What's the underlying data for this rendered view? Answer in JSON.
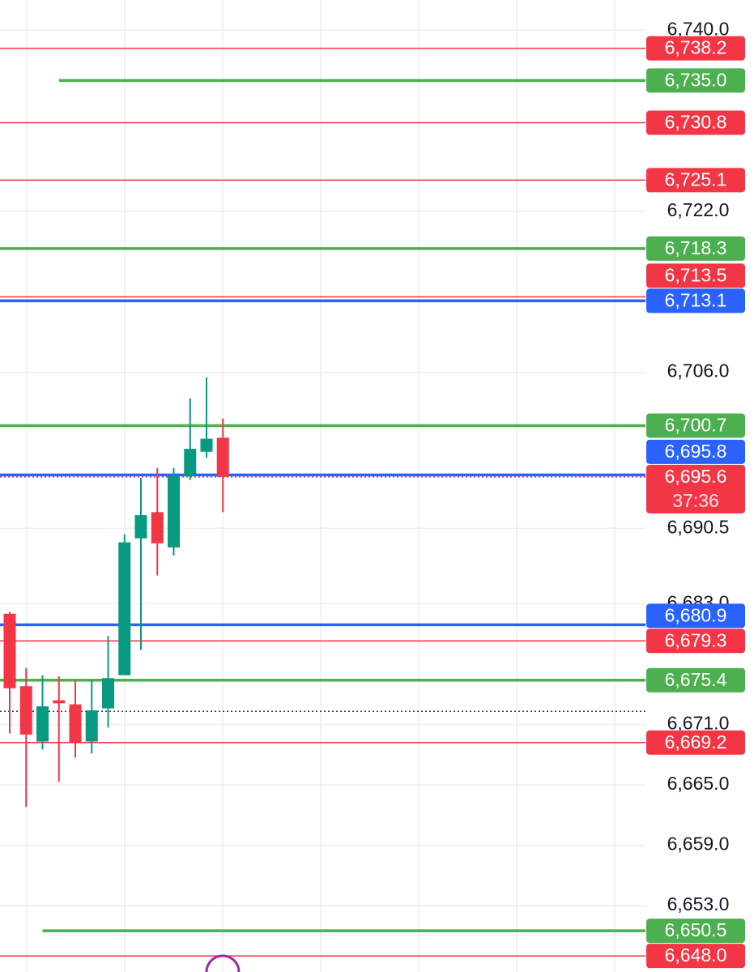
{
  "chart_data": {
    "type": "candlestick",
    "ylim": [
      6646.4,
      6743.0
    ],
    "yticks": [
      {
        "value": 6740.0,
        "label": "6,740.0"
      },
      {
        "value": 6722.0,
        "label": "6,722.0"
      },
      {
        "value": 6706.0,
        "label": "6,706.0"
      },
      {
        "value": 6690.5,
        "label": "6,690.5"
      },
      {
        "value": 6683.0,
        "label": "6,683.0"
      },
      {
        "value": 6671.0,
        "label": "6,671.0"
      },
      {
        "value": 6665.0,
        "label": "6,665.0"
      },
      {
        "value": 6659.0,
        "label": "6,659.0"
      },
      {
        "value": 6653.0,
        "label": "6,653.0"
      }
    ],
    "grid": true,
    "up_color": "#089981",
    "down_color": "#f23645",
    "open": [
      6682.0,
      6674.8,
      6669.3,
      6673.4,
      6673.0,
      6669.3,
      6672.6,
      6675.9,
      6689.5,
      6692.1,
      6688.6,
      6695.7,
      6698.1,
      6699.5
    ],
    "high": [
      6682.2,
      6676.6,
      6675.9,
      6675.8,
      6675.4,
      6675.4,
      6679.8,
      6689.9,
      6695.5,
      6696.5,
      6696.5,
      6703.4,
      6705.5,
      6701.4
    ],
    "low": [
      6670.1,
      6662.8,
      6668.5,
      6665.3,
      6667.7,
      6668.1,
      6670.7,
      6675.9,
      6678.4,
      6685.8,
      6687.8,
      6695.3,
      6697.5,
      6692.1
    ],
    "close": [
      6674.6,
      6670.0,
      6672.8,
      6673.1,
      6669.2,
      6672.4,
      6675.6,
      6689.1,
      6691.8,
      6689.0,
      6695.7,
      6698.4,
      6699.4,
      6695.6
    ],
    "levels": [
      {
        "value": 6738.2,
        "label": "6,738.2",
        "color": "#f23645",
        "style": "thin"
      },
      {
        "value": 6735.0,
        "label": "6,735.0",
        "color": "#4caf50",
        "style": "thick",
        "from_bar": 3
      },
      {
        "value": 6730.8,
        "label": "6,730.8",
        "color": "#f23645",
        "style": "thin"
      },
      {
        "value": 6725.1,
        "label": "6,725.1",
        "color": "#f23645",
        "style": "thin"
      },
      {
        "value": 6718.3,
        "label": "6,718.3",
        "color": "#4caf50",
        "style": "thick"
      },
      {
        "value": 6713.5,
        "label": "6,713.5",
        "color": "#f23645",
        "style": "thin"
      },
      {
        "value": 6713.1,
        "label": "6,713.1",
        "color": "#2962ff",
        "style": "thick"
      },
      {
        "value": 6700.7,
        "label": "6,700.7",
        "color": "#4caf50",
        "style": "thick"
      },
      {
        "value": 6695.8,
        "label": "6,695.8",
        "color": "#2962ff",
        "style": "thick"
      },
      {
        "value": 6695.6,
        "label": "6,695.6",
        "color": "#f23645",
        "style": "dotted",
        "countdown": "37:36"
      },
      {
        "value": 6680.9,
        "label": "6,680.9",
        "color": "#2962ff",
        "style": "thick"
      },
      {
        "value": 6679.3,
        "label": "6,679.3",
        "color": "#f23645",
        "style": "thin"
      },
      {
        "value": 6675.4,
        "label": "6,675.4",
        "color": "#4caf50",
        "style": "thick"
      },
      {
        "value": 6672.3,
        "color": "#333333",
        "style": "dotted"
      },
      {
        "value": 6669.2,
        "label": "6,669.2",
        "color": "#f23645",
        "style": "thin"
      },
      {
        "value": 6650.5,
        "label": "6,650.5",
        "color": "#4caf50",
        "style": "thick",
        "from_bar": 2
      },
      {
        "value": 6648.0,
        "label": "6,648.0",
        "color": "#f23645",
        "style": "thin"
      }
    ]
  }
}
